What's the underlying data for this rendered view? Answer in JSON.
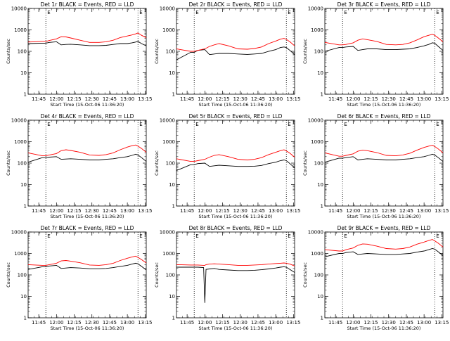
{
  "colors": {
    "events": "#000000",
    "lld": "#ff0000",
    "axis": "#000000"
  },
  "chart_data": [
    {
      "type": "line",
      "title": "Det 1r BLACK = Events, RED = LLD",
      "xlabel": "Start Time (15-Oct-06 11:36:20)",
      "ylabel": "Counts/sec",
      "x_ticks": [
        "11:45",
        "12:00",
        "12:15",
        "12:30",
        "12:45",
        "13:00",
        "13:15"
      ],
      "y_ticks": [
        "1",
        "10",
        "100",
        "1000",
        "10000"
      ],
      "ylim": [
        1,
        10000
      ],
      "y_scale": "log",
      "vlines": [
        "11:51",
        "13:09"
      ],
      "markers": [
        "E",
        "E"
      ],
      "x": [
        "11:36",
        "11:48",
        "11:51",
        "11:54",
        "12:00",
        "12:04",
        "12:08",
        "12:12",
        "12:20",
        "12:28",
        "12:36",
        "12:42",
        "12:48",
        "12:54",
        "13:00",
        "13:04",
        "13:07",
        "13:09",
        "13:12",
        "13:16"
      ],
      "series": [
        {
          "name": "Events",
          "values": [
            230,
            240,
            240,
            260,
            280,
            200,
            210,
            215,
            200,
            185,
            185,
            190,
            210,
            230,
            230,
            250,
            270,
            290,
            230,
            180
          ]
        },
        {
          "name": "LLD",
          "values": [
            270,
            290,
            290,
            320,
            380,
            480,
            470,
            420,
            330,
            260,
            260,
            280,
            330,
            440,
            520,
            580,
            650,
            720,
            560,
            430
          ]
        }
      ]
    },
    {
      "type": "line",
      "title": "Det 2r BLACK = Events, RED = LLD",
      "xlabel": "Start Time (15-Oct-06 11:36:20)",
      "ylabel": "Counts/sec",
      "x_ticks": [
        "11:45",
        "12:00",
        "12:15",
        "12:30",
        "12:45",
        "13:00",
        "13:15"
      ],
      "y_ticks": [
        "1",
        "10",
        "100",
        "1000",
        "10000"
      ],
      "ylim": [
        1,
        10000
      ],
      "y_scale": "log",
      "vlines": [
        "11:51",
        "13:09"
      ],
      "markers": [
        "E",
        "E"
      ],
      "x": [
        "11:36",
        "11:48",
        "11:51",
        "11:54",
        "12:00",
        "12:04",
        "12:08",
        "12:12",
        "12:20",
        "12:28",
        "12:36",
        "12:42",
        "12:48",
        "12:54",
        "13:00",
        "13:04",
        "13:07",
        "13:09",
        "13:12",
        "13:16"
      ],
      "series": [
        {
          "name": "Events",
          "values": [
            40,
            90,
            90,
            110,
            120,
            70,
            75,
            80,
            80,
            75,
            72,
            75,
            80,
            100,
            120,
            150,
            160,
            150,
            110,
            70
          ]
        },
        {
          "name": "LLD",
          "values": [
            130,
            100,
            100,
            110,
            130,
            170,
            200,
            230,
            180,
            130,
            125,
            135,
            160,
            230,
            300,
            370,
            400,
            360,
            280,
            180
          ]
        }
      ]
    },
    {
      "type": "line",
      "title": "Det 3r BLACK = Events, RED = LLD",
      "xlabel": "Start Time (15-Oct-06 11:36:20)",
      "ylabel": "Counts/sec",
      "x_ticks": [
        "11:45",
        "12:00",
        "12:15",
        "12:30",
        "12:45",
        "13:00",
        "13:15"
      ],
      "y_ticks": [
        "1",
        "10",
        "100",
        "1000",
        "10000"
      ],
      "ylim": [
        1,
        10000
      ],
      "y_scale": "log",
      "vlines": [
        "11:51",
        "13:09"
      ],
      "markers": [
        "E",
        "E"
      ],
      "x": [
        "11:36",
        "11:48",
        "11:51",
        "11:54",
        "12:00",
        "12:04",
        "12:08",
        "12:12",
        "12:20",
        "12:28",
        "12:36",
        "12:42",
        "12:48",
        "12:54",
        "13:00",
        "13:04",
        "13:07",
        "13:09",
        "13:12",
        "13:16"
      ],
      "series": [
        {
          "name": "Events",
          "values": [
            100,
            150,
            150,
            160,
            170,
            110,
            120,
            130,
            130,
            120,
            120,
            125,
            130,
            150,
            180,
            210,
            250,
            240,
            170,
            110
          ]
        },
        {
          "name": "LLD",
          "values": [
            260,
            200,
            200,
            210,
            250,
            330,
            380,
            350,
            290,
            210,
            200,
            210,
            250,
            340,
            480,
            560,
            620,
            560,
            420,
            280
          ]
        }
      ]
    },
    {
      "type": "line",
      "title": "Det 4r BLACK = Events, RED = LLD",
      "xlabel": "Start Time (15-Oct-06 11:36:20)",
      "ylabel": "Counts/sec",
      "x_ticks": [
        "11:45",
        "12:00",
        "12:15",
        "12:30",
        "12:45",
        "13:00",
        "13:15"
      ],
      "y_ticks": [
        "1",
        "10",
        "100",
        "1000",
        "10000"
      ],
      "ylim": [
        1,
        10000
      ],
      "y_scale": "log",
      "vlines": [
        "11:51",
        "13:09"
      ],
      "markers": [
        "E",
        "E"
      ],
      "x": [
        "11:36",
        "11:48",
        "11:51",
        "11:54",
        "12:00",
        "12:04",
        "12:08",
        "12:12",
        "12:20",
        "12:28",
        "12:36",
        "12:42",
        "12:48",
        "12:54",
        "13:00",
        "13:04",
        "13:07",
        "13:09",
        "13:12",
        "13:16"
      ],
      "series": [
        {
          "name": "Events",
          "values": [
            110,
            180,
            180,
            190,
            200,
            150,
            155,
            160,
            150,
            140,
            140,
            150,
            160,
            180,
            200,
            230,
            260,
            240,
            180,
            120
          ]
        },
        {
          "name": "LLD",
          "values": [
            300,
            220,
            220,
            240,
            280,
            380,
            420,
            390,
            320,
            240,
            230,
            250,
            300,
            420,
            560,
            650,
            700,
            620,
            480,
            320
          ]
        }
      ]
    },
    {
      "type": "line",
      "title": "Det 5r BLACK = Events, RED = LLD",
      "xlabel": "Start Time (15-Oct-06 11:36:20)",
      "ylabel": "Counts/sec",
      "x_ticks": [
        "11:45",
        "12:00",
        "12:15",
        "12:30",
        "12:45",
        "13:00",
        "13:15"
      ],
      "y_ticks": [
        "1",
        "10",
        "100",
        "1000",
        "10000"
      ],
      "ylim": [
        1,
        10000
      ],
      "y_scale": "log",
      "vlines": [
        "11:51",
        "13:09"
      ],
      "markers": [
        "E",
        "E"
      ],
      "x": [
        "11:36",
        "11:48",
        "11:51",
        "11:54",
        "12:00",
        "12:04",
        "12:08",
        "12:12",
        "12:20",
        "12:28",
        "12:36",
        "12:42",
        "12:48",
        "12:54",
        "13:00",
        "13:04",
        "13:07",
        "13:09",
        "13:12",
        "13:16"
      ],
      "series": [
        {
          "name": "Events",
          "values": [
            45,
            85,
            85,
            95,
            100,
            70,
            75,
            80,
            75,
            70,
            70,
            72,
            78,
            95,
            110,
            130,
            140,
            130,
            95,
            60
          ]
        },
        {
          "name": "LLD",
          "values": [
            160,
            120,
            120,
            130,
            150,
            190,
            230,
            250,
            200,
            150,
            140,
            150,
            180,
            250,
            320,
            380,
            420,
            370,
            290,
            190
          ]
        }
      ]
    },
    {
      "type": "line",
      "title": "Det 6r BLACK = Events, RED = LLD",
      "xlabel": "Start Time (15-Oct-06 11:36:20)",
      "ylabel": "Counts/sec",
      "x_ticks": [
        "11:45",
        "12:00",
        "12:15",
        "12:30",
        "12:45",
        "13:00",
        "13:15"
      ],
      "y_ticks": [
        "1",
        "10",
        "100",
        "1000",
        "10000"
      ],
      "ylim": [
        1,
        10000
      ],
      "y_scale": "log",
      "vlines": [
        "11:51",
        "13:09"
      ],
      "markers": [
        "E",
        "E"
      ],
      "x": [
        "11:36",
        "11:48",
        "11:51",
        "11:54",
        "12:00",
        "12:04",
        "12:08",
        "12:12",
        "12:20",
        "12:28",
        "12:36",
        "12:42",
        "12:48",
        "12:54",
        "13:00",
        "13:04",
        "13:07",
        "13:09",
        "13:12",
        "13:16"
      ],
      "series": [
        {
          "name": "Events",
          "values": [
            110,
            170,
            170,
            180,
            200,
            140,
            150,
            160,
            150,
            140,
            140,
            150,
            160,
            180,
            200,
            230,
            260,
            240,
            180,
            120
          ]
        },
        {
          "name": "LLD",
          "values": [
            300,
            210,
            210,
            230,
            270,
            360,
            400,
            380,
            310,
            230,
            220,
            240,
            290,
            400,
            540,
            620,
            680,
            600,
            460,
            300
          ]
        }
      ]
    },
    {
      "type": "line",
      "title": "Det 7r BLACK = Events, RED = LLD",
      "xlabel": "Start Time (15-Oct-06 11:36:20)",
      "ylabel": "Counts/sec",
      "x_ticks": [
        "11:45",
        "12:00",
        "12:15",
        "12:30",
        "12:45",
        "13:00",
        "13:15"
      ],
      "y_ticks": [
        "1",
        "10",
        "100",
        "1000",
        "10000"
      ],
      "ylim": [
        1,
        10000
      ],
      "y_scale": "log",
      "vlines": [
        "11:51",
        "13:09"
      ],
      "markers": [
        "E",
        "E"
      ],
      "x": [
        "11:36",
        "11:48",
        "11:51",
        "11:54",
        "12:00",
        "12:04",
        "12:08",
        "12:12",
        "12:20",
        "12:28",
        "12:36",
        "12:42",
        "12:48",
        "12:54",
        "13:00",
        "13:04",
        "13:07",
        "13:09",
        "13:12",
        "13:16"
      ],
      "series": [
        {
          "name": "Events",
          "values": [
            180,
            240,
            240,
            260,
            280,
            200,
            210,
            220,
            210,
            195,
            195,
            200,
            220,
            250,
            280,
            320,
            350,
            330,
            250,
            170
          ]
        },
        {
          "name": "LLD",
          "values": [
            300,
            280,
            280,
            300,
            350,
            450,
            470,
            440,
            370,
            290,
            280,
            300,
            350,
            470,
            600,
            690,
            750,
            660,
            520,
            360
          ]
        }
      ]
    },
    {
      "type": "line",
      "title": "Det 8r BLACK = Events, RED = LLD",
      "xlabel": "Start Time (15-Oct-06 11:36:20)",
      "ylabel": "Counts/sec",
      "x_ticks": [
        "11:45",
        "12:00",
        "12:15",
        "12:30",
        "12:45",
        "13:00",
        "13:15"
      ],
      "y_ticks": [
        "1",
        "10",
        "100",
        "1000",
        "10000"
      ],
      "ylim": [
        1,
        10000
      ],
      "y_scale": "log",
      "vlines": [
        "11:51",
        "13:09"
      ],
      "markers": [
        "E",
        "E"
      ],
      "x": [
        "11:36",
        "11:48",
        "11:51",
        "11:54",
        "11:59",
        "12:00",
        "12:01",
        "12:04",
        "12:08",
        "12:12",
        "12:20",
        "12:28",
        "12:36",
        "12:42",
        "12:48",
        "12:54",
        "13:00",
        "13:04",
        "13:07",
        "13:09",
        "13:12",
        "13:16"
      ],
      "series": [
        {
          "name": "Events",
          "values": [
            230,
            230,
            230,
            230,
            220,
            5,
            180,
            190,
            200,
            180,
            170,
            160,
            160,
            165,
            175,
            190,
            210,
            230,
            240,
            230,
            180,
            130
          ]
        },
        {
          "name": "LLD",
          "values": [
            300,
            290,
            290,
            290,
            280,
            280,
            300,
            320,
            330,
            320,
            300,
            280,
            280,
            290,
            300,
            320,
            340,
            350,
            360,
            350,
            320,
            260
          ]
        }
      ]
    },
    {
      "type": "line",
      "title": "Det 9r BLACK = Events, RED = LLD",
      "xlabel": "Start Time (15-Oct-06 11:36:20)",
      "ylabel": "Counts/sec",
      "x_ticks": [
        "11:45",
        "12:00",
        "12:15",
        "12:30",
        "12:45",
        "13:00",
        "13:15"
      ],
      "y_ticks": [
        "1",
        "10",
        "100",
        "1000",
        "10000"
      ],
      "ylim": [
        1,
        10000
      ],
      "y_scale": "log",
      "vlines": [
        "11:51",
        "13:09"
      ],
      "markers": [
        "E",
        "E"
      ],
      "x": [
        "11:36",
        "11:48",
        "11:51",
        "11:54",
        "12:00",
        "12:04",
        "12:08",
        "12:12",
        "12:20",
        "12:28",
        "12:36",
        "12:42",
        "12:48",
        "12:54",
        "13:00",
        "13:04",
        "13:07",
        "13:09",
        "13:12",
        "13:16"
      ],
      "series": [
        {
          "name": "Events",
          "values": [
            700,
            1000,
            1000,
            1100,
            1200,
            900,
            950,
            1000,
            950,
            900,
            900,
            950,
            1000,
            1150,
            1300,
            1500,
            1700,
            1600,
            1200,
            800
          ]
        },
        {
          "name": "LLD",
          "values": [
            1500,
            1300,
            1300,
            1500,
            1800,
            2400,
            2800,
            2700,
            2200,
            1700,
            1600,
            1700,
            2000,
            2700,
            3400,
            4000,
            4500,
            3900,
            3000,
            2000
          ]
        }
      ]
    }
  ]
}
